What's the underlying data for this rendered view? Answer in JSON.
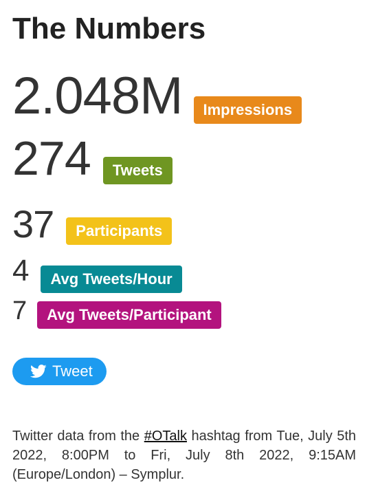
{
  "title": "The Numbers",
  "metrics": [
    {
      "value": "2.048M",
      "label": "Impressions",
      "color": "#e8891b"
    },
    {
      "value": "274",
      "label": "Tweets",
      "color": "#6f9622"
    },
    {
      "value": "37",
      "label": "Participants",
      "color": "#f3c21a"
    },
    {
      "value": "4",
      "label": "Avg Tweets/Hour",
      "color": "#088a94"
    },
    {
      "value": "7",
      "label": "Avg Tweets/Participant",
      "color": "#b3137e"
    }
  ],
  "tweet_button": {
    "label": "Tweet",
    "icon": "twitter-bird-icon",
    "color": "#1d9bf0"
  },
  "footer": {
    "prefix": "Twitter data from the",
    "hashtag": "#OTalk",
    "suffix": "hashtag from Tue, July 5th 2022, 8:00PM to Fri, July 8th 2022, 9:15AM (Europe/London) – Symplur."
  }
}
